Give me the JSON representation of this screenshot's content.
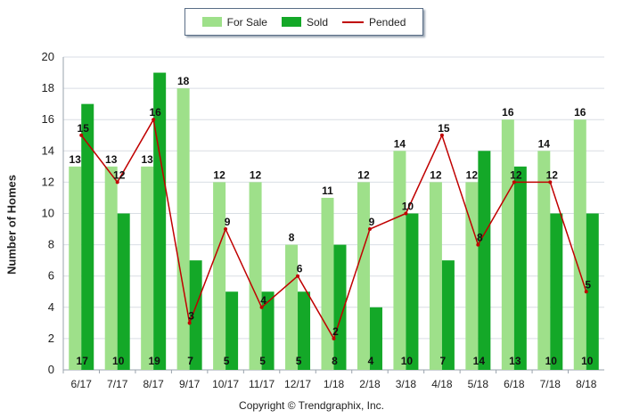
{
  "legend": {
    "for_sale": "For Sale",
    "sold": "Sold",
    "pended": "Pended"
  },
  "footer": {
    "copyright": "Copyright © Trendgraphix, Inc."
  },
  "colors": {
    "for_sale": "#9ee08a",
    "sold": "#14a828",
    "pended": "#c00000",
    "grid": "#d9dee4"
  },
  "chart_data": {
    "type": "bar",
    "title": "",
    "xlabel": "",
    "ylabel": "Number of Homes",
    "ylim": [
      0,
      20
    ],
    "yticks": [
      0,
      2,
      4,
      6,
      8,
      10,
      12,
      14,
      16,
      18,
      20
    ],
    "grid": true,
    "legend_position": "top-center",
    "categories": [
      "6/17",
      "7/17",
      "8/17",
      "9/17",
      "10/17",
      "11/17",
      "12/17",
      "1/18",
      "2/18",
      "3/18",
      "4/18",
      "5/18",
      "6/18",
      "7/18",
      "8/18"
    ],
    "series": [
      {
        "name": "For Sale",
        "type": "bar",
        "values": [
          13,
          13,
          13,
          18,
          12,
          12,
          8,
          11,
          12,
          14,
          12,
          12,
          16,
          14,
          16
        ]
      },
      {
        "name": "Sold",
        "type": "bar",
        "values": [
          17,
          10,
          19,
          7,
          5,
          5,
          5,
          8,
          4,
          10,
          7,
          14,
          13,
          10,
          10
        ]
      },
      {
        "name": "Pended",
        "type": "line",
        "values": [
          15,
          12,
          16,
          3,
          9,
          4,
          6,
          2,
          9,
          10,
          15,
          8,
          12,
          12,
          5
        ]
      }
    ]
  }
}
